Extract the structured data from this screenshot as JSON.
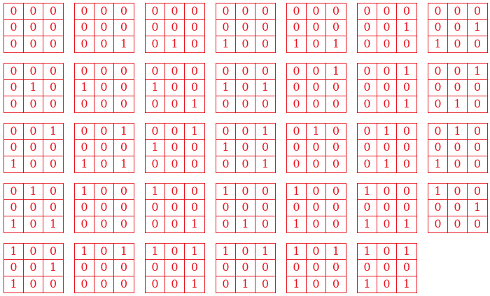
{
  "colors": {
    "grid": "#e8141e",
    "digit": "#e8141e",
    "background": "#ffffff"
  },
  "matrices": [
    [
      [
        "0",
        "0",
        "0"
      ],
      [
        "0",
        "0",
        "0"
      ],
      [
        "0",
        "0",
        "0"
      ]
    ],
    [
      [
        "0",
        "0",
        "0"
      ],
      [
        "0",
        "0",
        "0"
      ],
      [
        "0",
        "0",
        "1"
      ]
    ],
    [
      [
        "0",
        "0",
        "0"
      ],
      [
        "0",
        "0",
        "0"
      ],
      [
        "0",
        "1",
        "0"
      ]
    ],
    [
      [
        "0",
        "0",
        "0"
      ],
      [
        "0",
        "0",
        "0"
      ],
      [
        "1",
        "0",
        "0"
      ]
    ],
    [
      [
        "0",
        "0",
        "0"
      ],
      [
        "0",
        "0",
        "0"
      ],
      [
        "1",
        "0",
        "1"
      ]
    ],
    [
      [
        "0",
        "0",
        "0"
      ],
      [
        "0",
        "0",
        "1"
      ],
      [
        "0",
        "0",
        "0"
      ]
    ],
    [
      [
        "0",
        "0",
        "0"
      ],
      [
        "0",
        "0",
        "1"
      ],
      [
        "1",
        "0",
        "0"
      ]
    ],
    [
      [
        "0",
        "0",
        "0"
      ],
      [
        "0",
        "1",
        "0"
      ],
      [
        "0",
        "0",
        "0"
      ]
    ],
    [
      [
        "0",
        "0",
        "0"
      ],
      [
        "1",
        "0",
        "0"
      ],
      [
        "0",
        "0",
        "0"
      ]
    ],
    [
      [
        "0",
        "0",
        "0"
      ],
      [
        "1",
        "0",
        "0"
      ],
      [
        "0",
        "0",
        "1"
      ]
    ],
    [
      [
        "0",
        "0",
        "0"
      ],
      [
        "1",
        "0",
        "1"
      ],
      [
        "0",
        "0",
        "0"
      ]
    ],
    [
      [
        "0",
        "0",
        "1"
      ],
      [
        "0",
        "0",
        "0"
      ],
      [
        "0",
        "0",
        "0"
      ]
    ],
    [
      [
        "0",
        "0",
        "1"
      ],
      [
        "0",
        "0",
        "0"
      ],
      [
        "0",
        "0",
        "1"
      ]
    ],
    [
      [
        "0",
        "0",
        "1"
      ],
      [
        "0",
        "0",
        "0"
      ],
      [
        "0",
        "1",
        "0"
      ]
    ],
    [
      [
        "0",
        "0",
        "1"
      ],
      [
        "0",
        "0",
        "0"
      ],
      [
        "1",
        "0",
        "0"
      ]
    ],
    [
      [
        "0",
        "0",
        "1"
      ],
      [
        "0",
        "0",
        "0"
      ],
      [
        "1",
        "0",
        "1"
      ]
    ],
    [
      [
        "0",
        "0",
        "1"
      ],
      [
        "1",
        "0",
        "0"
      ],
      [
        "0",
        "0",
        "0"
      ]
    ],
    [
      [
        "0",
        "0",
        "1"
      ],
      [
        "1",
        "0",
        "0"
      ],
      [
        "0",
        "0",
        "1"
      ]
    ],
    [
      [
        "0",
        "1",
        "0"
      ],
      [
        "0",
        "0",
        "0"
      ],
      [
        "0",
        "0",
        "0"
      ]
    ],
    [
      [
        "0",
        "1",
        "0"
      ],
      [
        "0",
        "0",
        "0"
      ],
      [
        "0",
        "1",
        "0"
      ]
    ],
    [
      [
        "0",
        "1",
        "0"
      ],
      [
        "0",
        "0",
        "0"
      ],
      [
        "1",
        "0",
        "0"
      ]
    ],
    [
      [
        "0",
        "1",
        "0"
      ],
      [
        "0",
        "0",
        "0"
      ],
      [
        "1",
        "0",
        "1"
      ]
    ],
    [
      [
        "1",
        "0",
        "0"
      ],
      [
        "0",
        "0",
        "0"
      ],
      [
        "0",
        "0",
        "0"
      ]
    ],
    [
      [
        "1",
        "0",
        "0"
      ],
      [
        "0",
        "0",
        "0"
      ],
      [
        "0",
        "0",
        "1"
      ]
    ],
    [
      [
        "1",
        "0",
        "0"
      ],
      [
        "0",
        "0",
        "0"
      ],
      [
        "0",
        "1",
        "0"
      ]
    ],
    [
      [
        "1",
        "0",
        "0"
      ],
      [
        "0",
        "0",
        "0"
      ],
      [
        "1",
        "0",
        "0"
      ]
    ],
    [
      [
        "1",
        "0",
        "0"
      ],
      [
        "0",
        "0",
        "0"
      ],
      [
        "1",
        "0",
        "1"
      ]
    ],
    [
      [
        "1",
        "0",
        "0"
      ],
      [
        "0",
        "0",
        "1"
      ],
      [
        "0",
        "0",
        "0"
      ]
    ],
    [
      [
        "1",
        "0",
        "0"
      ],
      [
        "0",
        "0",
        "1"
      ],
      [
        "1",
        "0",
        "0"
      ]
    ],
    [
      [
        "1",
        "0",
        "1"
      ],
      [
        "0",
        "0",
        "0"
      ],
      [
        "0",
        "0",
        "0"
      ]
    ],
    [
      [
        "1",
        "0",
        "1"
      ],
      [
        "0",
        "0",
        "0"
      ],
      [
        "0",
        "0",
        "1"
      ]
    ],
    [
      [
        "1",
        "0",
        "1"
      ],
      [
        "0",
        "0",
        "0"
      ],
      [
        "0",
        "1",
        "0"
      ]
    ],
    [
      [
        "1",
        "0",
        "1"
      ],
      [
        "0",
        "0",
        "0"
      ],
      [
        "1",
        "0",
        "0"
      ]
    ],
    [
      [
        "1",
        "0",
        "1"
      ],
      [
        "0",
        "0",
        "0"
      ],
      [
        "1",
        "0",
        "1"
      ]
    ]
  ]
}
